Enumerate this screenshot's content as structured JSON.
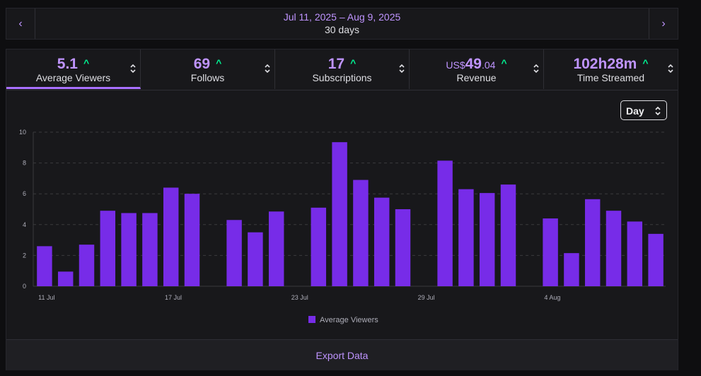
{
  "header": {
    "prev_label": "‹",
    "next_label": "›",
    "date_range": "Jul 11, 2025 – Aug 9, 2025",
    "duration": "30 days"
  },
  "tabs": [
    {
      "value": "5.1",
      "label": "Average Viewers",
      "active": true
    },
    {
      "value": "69",
      "label": "Follows"
    },
    {
      "value": "17",
      "label": "Subscriptions"
    },
    {
      "value_prefix": "US$",
      "value": "49",
      "value_suffix": ".04",
      "label": "Revenue"
    },
    {
      "value": "102h28m",
      "label": "Time Streamed"
    }
  ],
  "granularity": {
    "selected": "Day"
  },
  "colors": {
    "accent": "#a970ff",
    "bar": "#772ce8",
    "trend_up": "#00f593"
  },
  "chart_data": {
    "type": "bar",
    "categories": [
      "11 Jul",
      "12 Jul",
      "13 Jul",
      "14 Jul",
      "15 Jul",
      "16 Jul",
      "17 Jul",
      "18 Jul",
      "19 Jul",
      "20 Jul",
      "21 Jul",
      "22 Jul",
      "23 Jul",
      "24 Jul",
      "25 Jul",
      "26 Jul",
      "27 Jul",
      "28 Jul",
      "29 Jul",
      "30 Jul",
      "31 Jul",
      "1 Aug",
      "2 Aug",
      "3 Aug",
      "4 Aug",
      "5 Aug",
      "6 Aug",
      "7 Aug",
      "8 Aug",
      "9 Aug"
    ],
    "x_tick_labels": [
      "11 Jul",
      "17 Jul",
      "23 Jul",
      "29 Jul",
      "4 Aug"
    ],
    "x_tick_indices": [
      0,
      6,
      12,
      18,
      24
    ],
    "series": [
      {
        "name": "Average Viewers",
        "values": [
          2.6,
          0.95,
          2.7,
          4.9,
          4.75,
          4.75,
          6.4,
          6.0,
          0,
          4.3,
          3.5,
          4.85,
          0,
          5.1,
          9.35,
          6.9,
          5.75,
          5.0,
          0,
          8.15,
          6.3,
          6.05,
          6.6,
          0,
          4.4,
          2.15,
          5.65,
          4.9,
          4.2,
          3.4
        ]
      }
    ],
    "ylim": [
      0,
      10
    ],
    "y_ticks": [
      0,
      2,
      4,
      6,
      8,
      10
    ],
    "grid": true,
    "legend": "bottom-center"
  },
  "export_label": "Export Data"
}
